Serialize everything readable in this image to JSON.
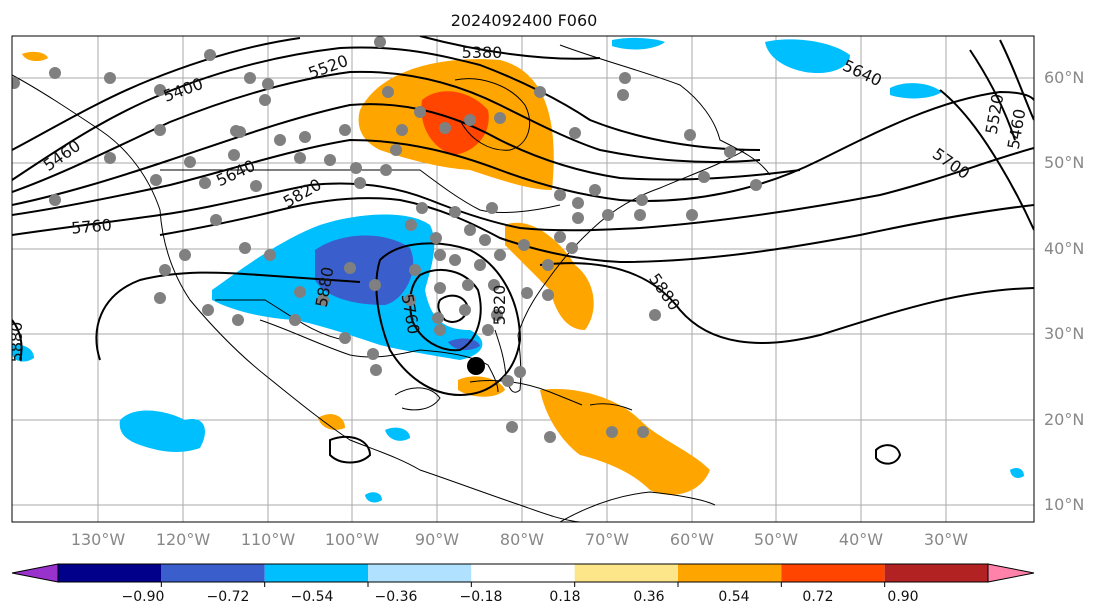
{
  "title": "2024092400 F060",
  "map": {
    "lon_labels": [
      "130°W",
      "120°W",
      "110°W",
      "100°W",
      "90°W",
      "80°W",
      "70°W",
      "60°W",
      "50°W",
      "40°W",
      "30°W"
    ],
    "lat_labels": [
      "60°N",
      "50°N",
      "40°N",
      "30°N",
      "20°N",
      "10°N"
    ],
    "contour_labels": [
      "5380",
      "5400",
      "5460",
      "5520",
      "5640",
      "5820",
      "5760",
      "5880",
      "5820",
      "5760",
      "5640",
      "5700",
      "5520",
      "5460",
      "5880",
      "5760"
    ],
    "colors": {
      "land_outline": "#000000",
      "grid": "#aaaaaa",
      "station_dot": "#808080"
    }
  },
  "colorbar": {
    "tick_labels": [
      "−0.90",
      "−0.72",
      "−0.54",
      "−0.36",
      "−0.18",
      "0.18",
      "0.36",
      "0.54",
      "0.72",
      "0.90"
    ],
    "colors": [
      "#9932cc",
      "#00008b",
      "#3a5fcd",
      "#00bfff",
      "#b0e2ff",
      "#ffffff",
      "#fde68a",
      "#ffa500",
      "#ff4500",
      "#b22222",
      "#ff82ab"
    ]
  }
}
